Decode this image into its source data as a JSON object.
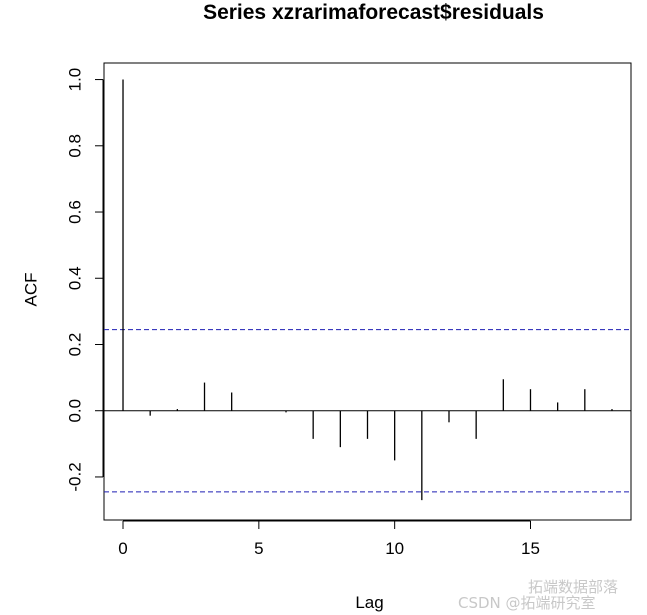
{
  "chart_data": {
    "type": "bar",
    "title": "Series  xzrarimaforecast$residuals",
    "xlabel": "Lag",
    "ylabel": "ACF",
    "x": [
      0,
      1,
      2,
      3,
      4,
      5,
      6,
      7,
      8,
      9,
      10,
      11,
      12,
      13,
      14,
      15,
      16,
      17,
      18
    ],
    "values": [
      1.0,
      -0.015,
      0.005,
      0.085,
      0.055,
      0.0,
      -0.005,
      -0.085,
      -0.11,
      -0.085,
      -0.15,
      -0.27,
      -0.035,
      -0.085,
      0.095,
      0.065,
      0.025,
      0.065,
      0.005
    ],
    "xlim": [
      -0.7,
      18.7
    ],
    "ylim": [
      -0.33,
      1.05
    ],
    "xticks": [
      "0",
      "5",
      "10",
      "15"
    ],
    "yticks": [
      "-0.2",
      "0.0",
      "0.2",
      "0.4",
      "0.6",
      "0.8",
      "1.0"
    ],
    "confidence_bounds": [
      0.245,
      -0.245
    ],
    "colors": {
      "bars": "#000000",
      "bounds": "#1f1fb4"
    },
    "grid": false
  },
  "watermark": {
    "line1": "拓端数据部落",
    "line2": "CSDN @拓端研究室"
  }
}
